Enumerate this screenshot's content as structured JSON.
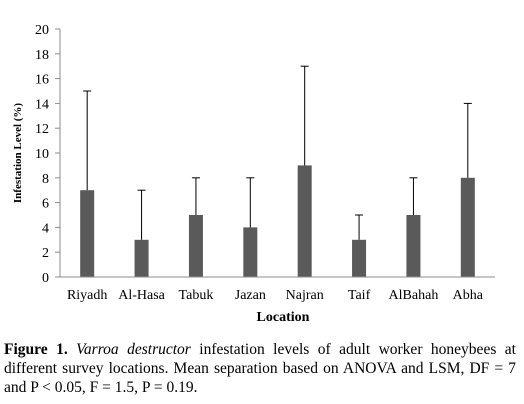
{
  "chart_data": {
    "type": "bar",
    "categories": [
      "Riyadh",
      "Al-Hasa",
      "Tabuk",
      "Jazan",
      "Najran",
      "Taif",
      "AlBahah",
      "Abha"
    ],
    "values": [
      7,
      3,
      5,
      4,
      9,
      3,
      5,
      8
    ],
    "error_upper": [
      15,
      7,
      8,
      8,
      17,
      5,
      8,
      14
    ],
    "xlabel": "Location",
    "ylabel": "Infestation Level (%)",
    "ylim": [
      0,
      20
    ],
    "yticks": [
      0,
      2,
      4,
      6,
      8,
      10,
      12,
      14,
      16,
      18,
      20
    ],
    "grid": false,
    "bar_color": "#5a5a5a"
  },
  "caption": {
    "label": "Figure 1.",
    "species": "Varroa destructor",
    "text": "infestation levels of adult worker honeybees at different survey locations. Mean separation based on ANOVA and LSM, DF = 7 and P < 0.05, F = 1.5, P = 0.19."
  }
}
